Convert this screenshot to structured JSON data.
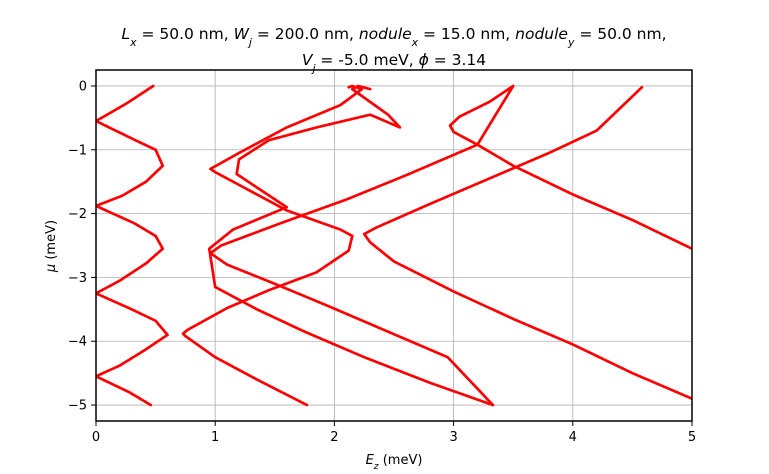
{
  "chart_data": {
    "type": "scatter",
    "title_parts": [
      {
        "text": "L",
        "italic": true
      },
      {
        "text": "x",
        "italic": true,
        "sub": true
      },
      {
        "text": " = 50.0 nm, "
      },
      {
        "text": "W",
        "italic": true
      },
      {
        "text": "j",
        "italic": true,
        "sub": true
      },
      {
        "text": " = 200.0 nm, "
      },
      {
        "text": "nodule",
        "italic": true
      },
      {
        "text": "x",
        "italic": true,
        "sub": true
      },
      {
        "text": " = 15.0 nm, "
      },
      {
        "text": "nodule",
        "italic": true
      },
      {
        "text": "y",
        "italic": true,
        "sub": true
      },
      {
        "text": " = 50.0 nm,"
      }
    ],
    "subtitle_parts": [
      {
        "text": "V",
        "italic": true
      },
      {
        "text": "j",
        "italic": true,
        "sub": true
      },
      {
        "text": " = -5.0 meV, "
      },
      {
        "text": "ϕ",
        "italic": true
      },
      {
        "text": " = 3.14"
      }
    ],
    "xlabel_parts": [
      {
        "text": "E",
        "italic": true
      },
      {
        "text": "z",
        "italic": true,
        "sub": true
      },
      {
        "text": " (meV)"
      }
    ],
    "ylabel_parts": [
      {
        "text": "μ",
        "italic": true
      },
      {
        "text": " (meV)"
      }
    ],
    "xlim": [
      0,
      5
    ],
    "ylim": [
      -5.25,
      0.25
    ],
    "x_ticks": [
      0,
      1,
      2,
      3,
      4,
      5
    ],
    "x_tick_labels": [
      "0",
      "1",
      "2",
      "3",
      "4",
      "5"
    ],
    "y_ticks": [
      0,
      -1,
      -2,
      -3,
      -4,
      -5
    ],
    "y_tick_labels": [
      "0",
      "−1",
      "−2",
      "−3",
      "−4",
      "−5"
    ],
    "grid": true,
    "marker_color": "#ff0000",
    "series": [
      {
        "points": [
          [
            0.48,
            0
          ],
          [
            0.26,
            -0.27
          ],
          [
            0.0,
            -0.55
          ],
          [
            0.33,
            -0.85
          ],
          [
            0.5,
            -1.0
          ],
          [
            0.56,
            -1.25
          ],
          [
            0.42,
            -1.5
          ],
          [
            0.22,
            -1.72
          ],
          [
            0.0,
            -1.88
          ],
          [
            0.32,
            -2.15
          ],
          [
            0.5,
            -2.35
          ],
          [
            0.56,
            -2.55
          ],
          [
            0.42,
            -2.78
          ],
          [
            0.2,
            -3.05
          ],
          [
            0.0,
            -3.25
          ],
          [
            0.3,
            -3.5
          ],
          [
            0.5,
            -3.68
          ],
          [
            0.6,
            -3.9
          ],
          [
            0.4,
            -4.15
          ],
          [
            0.2,
            -4.38
          ],
          [
            0.0,
            -4.55
          ],
          [
            0.28,
            -4.8
          ],
          [
            0.46,
            -5.0
          ]
        ]
      },
      {
        "points": [
          [
            1.77,
            -5.0
          ],
          [
            1.35,
            -4.6
          ],
          [
            1.0,
            -4.25
          ],
          [
            0.75,
            -3.92
          ],
          [
            0.73,
            -3.88
          ],
          [
            0.77,
            -3.82
          ],
          [
            1.1,
            -3.48
          ],
          [
            1.45,
            -3.2
          ],
          [
            1.85,
            -2.92
          ],
          [
            2.12,
            -2.58
          ],
          [
            2.15,
            -2.35
          ],
          [
            2.05,
            -2.25
          ],
          [
            1.6,
            -1.95
          ],
          [
            1.0,
            -1.35
          ],
          [
            0.96,
            -1.3
          ],
          [
            1.2,
            -1.05
          ],
          [
            1.6,
            -0.65
          ],
          [
            2.05,
            -0.3
          ],
          [
            2.23,
            -0.05
          ],
          [
            2.15,
            0
          ],
          [
            2.12,
            -0.02
          ]
        ]
      },
      {
        "points": [
          [
            3.33,
            -5.0
          ],
          [
            2.8,
            -4.65
          ],
          [
            2.25,
            -4.25
          ],
          [
            1.75,
            -3.85
          ],
          [
            1.35,
            -3.5
          ],
          [
            1.0,
            -3.15
          ],
          [
            0.95,
            -2.55
          ],
          [
            1.15,
            -2.25
          ],
          [
            1.6,
            -1.9
          ],
          [
            1.18,
            -1.38
          ],
          [
            1.2,
            -1.15
          ],
          [
            1.45,
            -0.85
          ],
          [
            1.85,
            -0.65
          ],
          [
            2.3,
            -0.45
          ],
          [
            2.55,
            -0.65
          ],
          [
            2.45,
            -0.45
          ],
          [
            2.3,
            -0.25
          ],
          [
            2.15,
            -0.05
          ],
          [
            2.2,
            0
          ],
          [
            2.3,
            -0.05
          ]
        ]
      },
      {
        "points": [
          [
            5.0,
            -4.9
          ],
          [
            4.5,
            -4.5
          ],
          [
            4.0,
            -4.05
          ],
          [
            3.5,
            -3.65
          ],
          [
            3.0,
            -3.22
          ],
          [
            2.5,
            -2.75
          ],
          [
            2.3,
            -2.45
          ],
          [
            2.25,
            -2.32
          ],
          [
            2.35,
            -2.22
          ],
          [
            2.8,
            -1.85
          ],
          [
            3.3,
            -1.45
          ],
          [
            3.8,
            -1.05
          ],
          [
            4.2,
            -0.7
          ],
          [
            4.58,
            -0.02
          ]
        ]
      },
      {
        "points": [
          [
            5.0,
            -2.55
          ],
          [
            4.5,
            -2.1
          ],
          [
            4.0,
            -1.7
          ],
          [
            3.5,
            -1.25
          ],
          [
            3.2,
            -0.92
          ],
          [
            3.0,
            -0.72
          ],
          [
            2.97,
            -0.62
          ],
          [
            3.05,
            -0.48
          ],
          [
            3.3,
            -0.25
          ],
          [
            3.5,
            0
          ],
          [
            3.2,
            -0.92
          ],
          [
            2.6,
            -1.4
          ],
          [
            2.1,
            -1.78
          ],
          [
            1.55,
            -2.15
          ],
          [
            1.05,
            -2.5
          ],
          [
            0.96,
            -2.62
          ],
          [
            1.1,
            -2.8
          ],
          [
            1.5,
            -3.1
          ],
          [
            1.95,
            -3.45
          ],
          [
            2.45,
            -3.85
          ],
          [
            2.95,
            -4.25
          ],
          [
            3.33,
            -5.0
          ]
        ]
      }
    ]
  }
}
